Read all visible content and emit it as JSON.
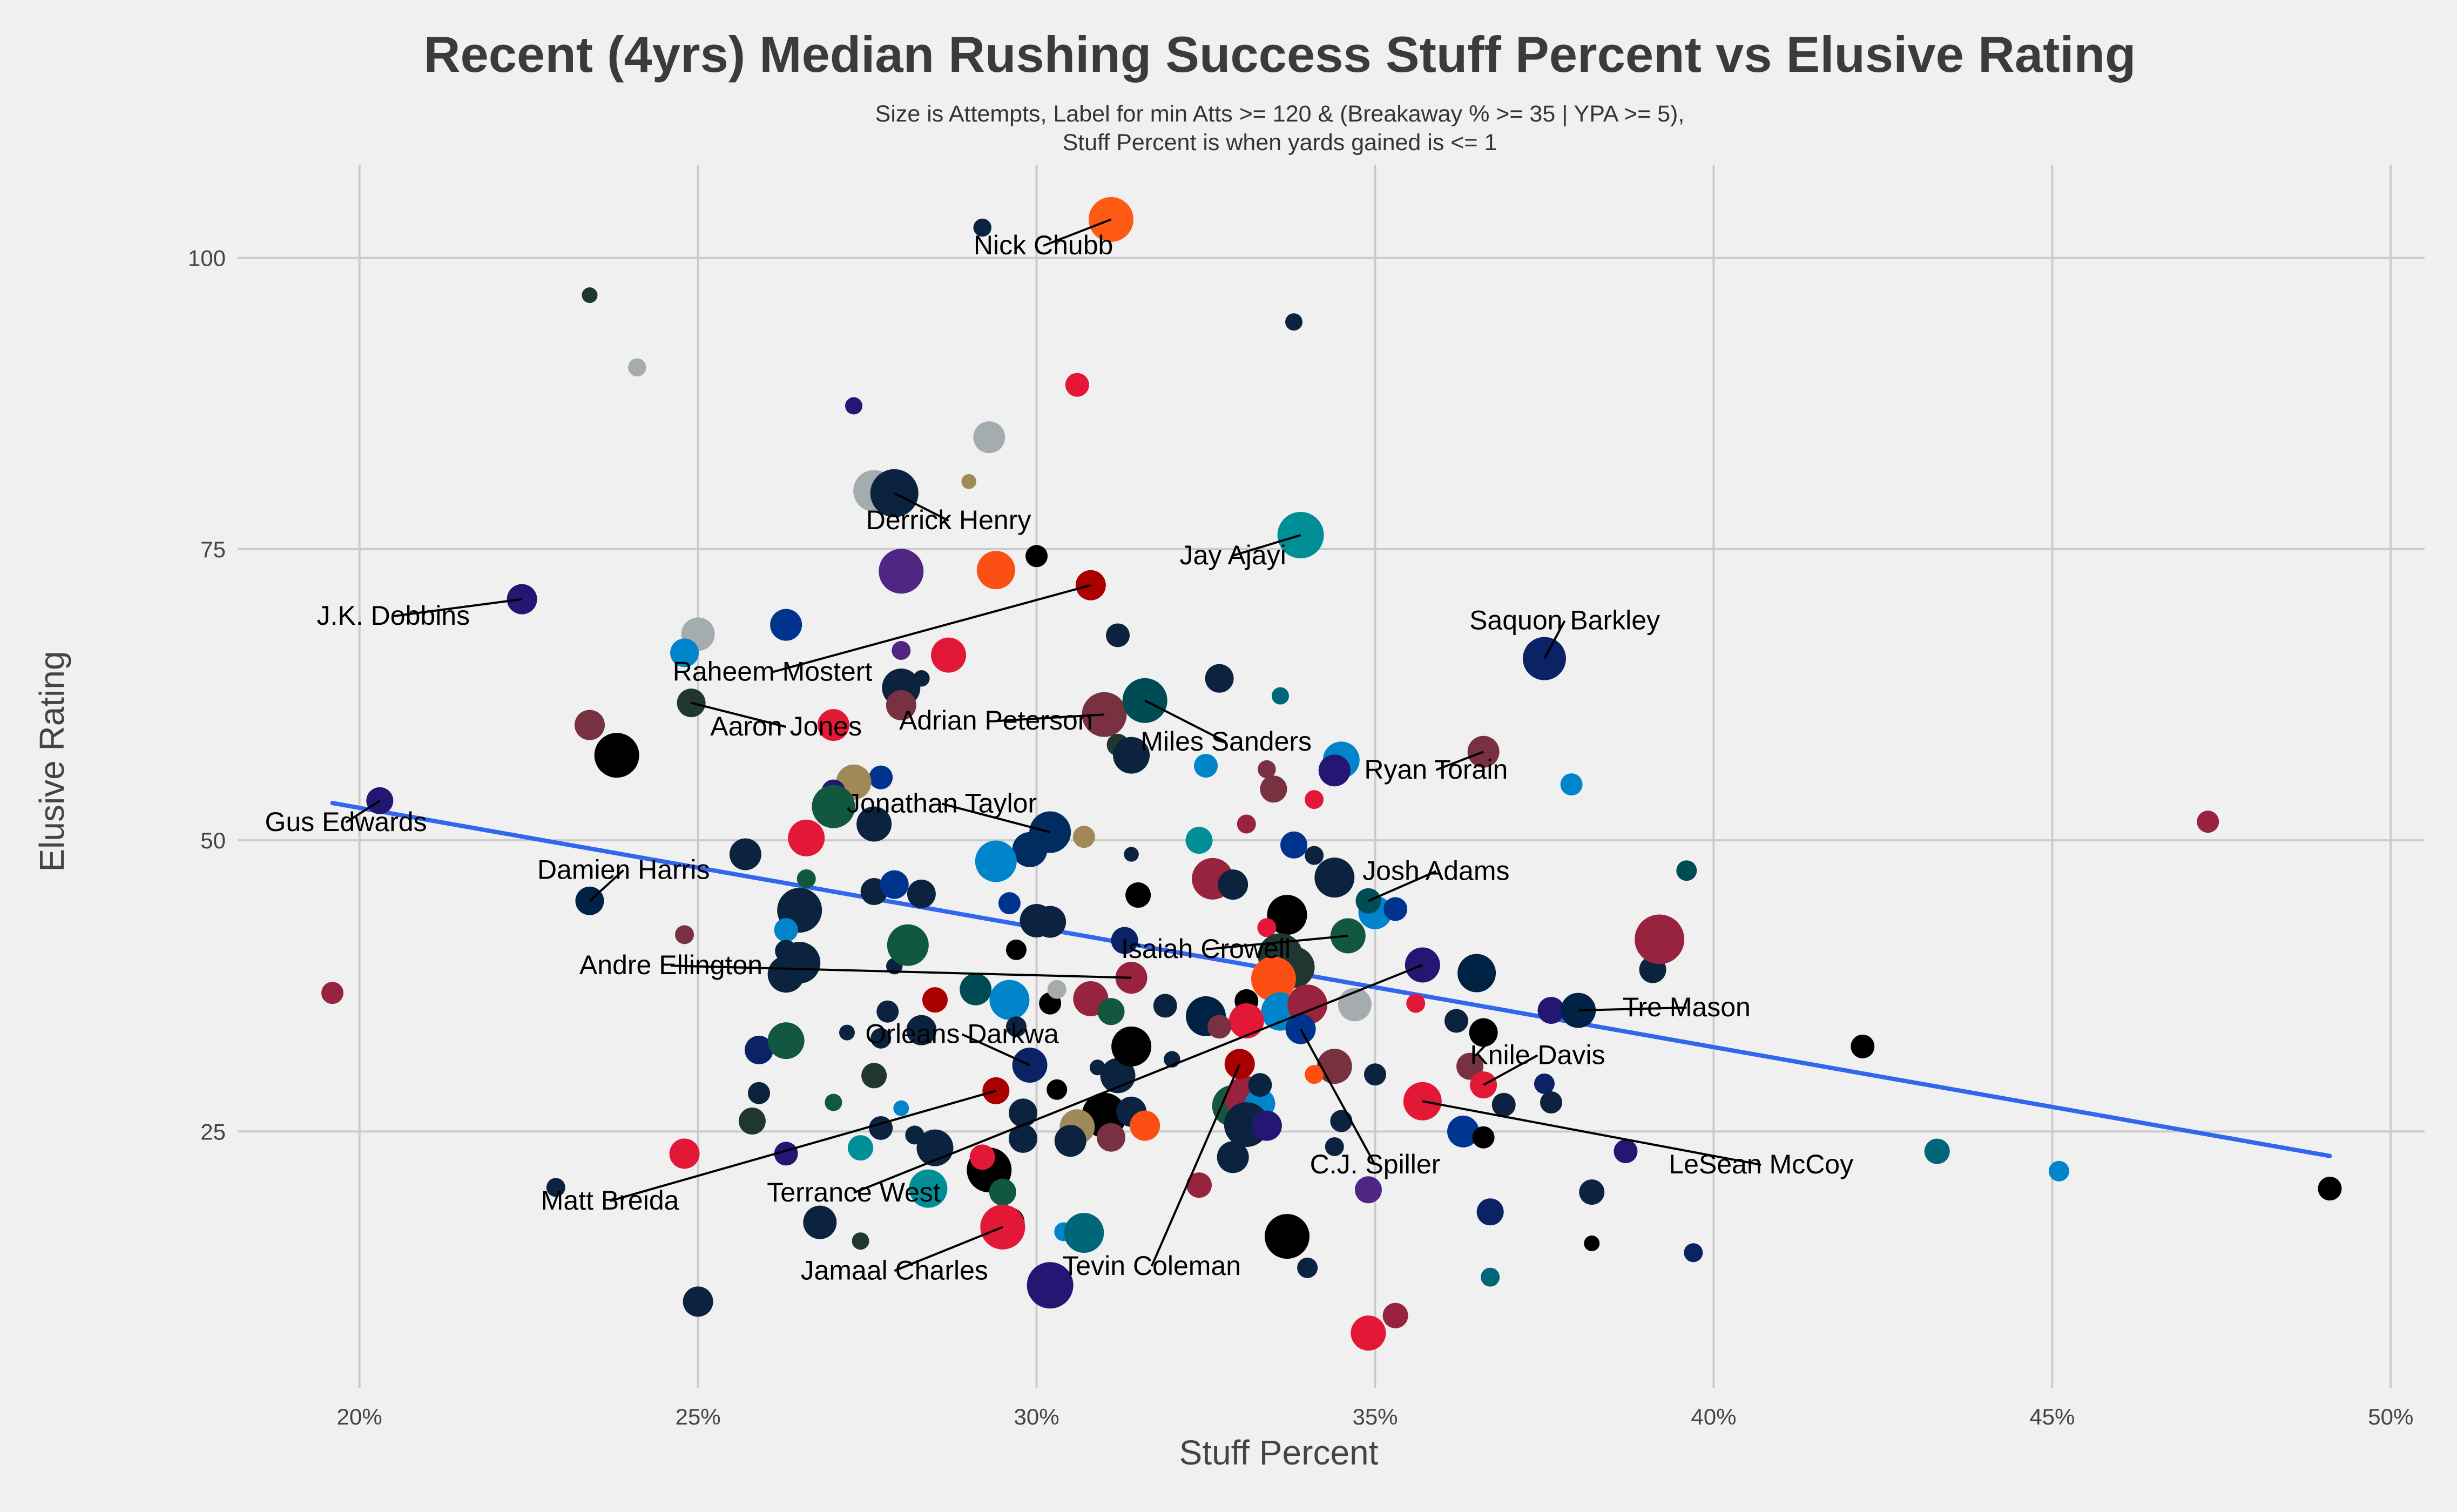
{
  "chart_data": {
    "type": "scatter",
    "title": "Recent (4yrs) Median Rushing Success Stuff Percent vs Elusive Rating",
    "subtitle_lines": [
      "Size is Attempts, Label for min Atts >= 120 & (Breakaway % >= 35 | YPA >= 5),",
      "Stuff Percent is when yards gained is <= 1"
    ],
    "xlabel": "Stuff Percent",
    "ylabel": "Elusive Rating",
    "xlim": [
      0.182,
      0.505
    ],
    "ylim": [
      3,
      108
    ],
    "x_ticks": [
      0.2,
      0.25,
      0.3,
      0.35,
      0.4,
      0.45,
      0.5
    ],
    "x_tick_labels": [
      "20%",
      "25%",
      "30%",
      "35%",
      "40%",
      "45%",
      "50%"
    ],
    "y_ticks": [
      25,
      50,
      75,
      100
    ],
    "y_tick_labels": [
      "25",
      "50",
      "75",
      "100"
    ],
    "grid": true,
    "trend_line": {
      "color": "#3366ee",
      "x": [
        0.196,
        0.491
      ],
      "y": [
        53.2,
        22.9
      ]
    },
    "labeled_points": [
      {
        "name": "Nick Chubb",
        "x": 0.311,
        "y": 103.3,
        "size": 420,
        "color": "#ff5a14",
        "label_x": 0.301,
        "label_y": 100.3
      },
      {
        "name": "Derrick Henry",
        "x": 0.279,
        "y": 79.8,
        "size": 460,
        "color": "#0c2340",
        "label_x": 0.287,
        "label_y": 76.7
      },
      {
        "name": "Jay Ajayi",
        "x": 0.339,
        "y": 76.2,
        "size": 440,
        "color": "#008e97",
        "label_x": 0.329,
        "label_y": 73.7
      },
      {
        "name": "J.K. Dobbins",
        "x": 0.224,
        "y": 70.7,
        "size": 240,
        "color": "#241773",
        "label_x": 0.205,
        "label_y": 68.5
      },
      {
        "name": "Raheem Mostert",
        "x": 0.308,
        "y": 71.9,
        "size": 240,
        "color": "#aa0000",
        "label_x": 0.261,
        "label_y": 63.7
      },
      {
        "name": "Saquon Barkley",
        "x": 0.375,
        "y": 65.6,
        "size": 400,
        "color": "#0b2265",
        "label_x": 0.378,
        "label_y": 68.1
      },
      {
        "name": "Adrian Peterson",
        "x": 0.31,
        "y": 60.8,
        "size": 420,
        "color": "#773141",
        "label_x": 0.294,
        "label_y": 59.5
      },
      {
        "name": "Aaron Jones",
        "x": 0.249,
        "y": 61.8,
        "size": 220,
        "color": "#203731",
        "label_x": 0.263,
        "label_y": 59.0
      },
      {
        "name": "Miles Sanders",
        "x": 0.316,
        "y": 62.0,
        "size": 420,
        "color": "#004c54",
        "label_x": 0.328,
        "label_y": 57.7
      },
      {
        "name": "Ryan Torain",
        "x": 0.366,
        "y": 57.6,
        "size": 260,
        "color": "#773141",
        "label_x": 0.359,
        "label_y": 55.3
      },
      {
        "name": "Gus Edwards",
        "x": 0.203,
        "y": 53.4,
        "size": 200,
        "color": "#241773",
        "label_x": 0.198,
        "label_y": 50.8
      },
      {
        "name": "Jonathan Taylor",
        "x": 0.302,
        "y": 50.7,
        "size": 380,
        "color": "#002c5f",
        "label_x": 0.286,
        "label_y": 52.4
      },
      {
        "name": "Josh Adams",
        "x": 0.349,
        "y": 44.8,
        "size": 180,
        "color": "#004c54",
        "label_x": 0.359,
        "label_y": 46.6
      },
      {
        "name": "Damien Harris",
        "x": 0.234,
        "y": 44.8,
        "size": 220,
        "color": "#002244",
        "label_x": 0.239,
        "label_y": 46.7
      },
      {
        "name": "Isaiah Crowell",
        "x": 0.346,
        "y": 41.8,
        "size": 300,
        "color": "#125740",
        "label_x": 0.325,
        "label_y": 39.9
      },
      {
        "name": "Andre Ellington",
        "x": 0.314,
        "y": 38.2,
        "size": 260,
        "color": "#97233f",
        "label_x": 0.246,
        "label_y": 38.5
      },
      {
        "name": "Tre Mason",
        "x": 0.38,
        "y": 35.4,
        "size": 300,
        "color": "#002244",
        "label_x": 0.396,
        "label_y": 34.9
      },
      {
        "name": "Orleans Darkwa",
        "x": 0.299,
        "y": 30.7,
        "size": 300,
        "color": "#0b2265",
        "label_x": 0.289,
        "label_y": 32.6
      },
      {
        "name": "Knile Davis",
        "x": 0.366,
        "y": 29.0,
        "size": 200,
        "color": "#e31837",
        "label_x": 0.374,
        "label_y": 30.8
      },
      {
        "name": "C.J. Spiller",
        "x": 0.339,
        "y": 33.8,
        "size": 240,
        "color": "#00338d",
        "label_x": 0.35,
        "label_y": 21.4
      },
      {
        "name": "LeSean McCoy",
        "x": 0.357,
        "y": 27.6,
        "size": 340,
        "color": "#e31837",
        "label_x": 0.407,
        "label_y": 21.4
      },
      {
        "name": "Matt Breida",
        "x": 0.294,
        "y": 28.5,
        "size": 200,
        "color": "#aa0000",
        "label_x": 0.237,
        "label_y": 18.3
      },
      {
        "name": "Terrance West",
        "x": 0.357,
        "y": 39.3,
        "size": 300,
        "color": "#241773",
        "label_x": 0.273,
        "label_y": 19.0
      },
      {
        "name": "Jamaal Charles",
        "x": 0.295,
        "y": 16.8,
        "size": 420,
        "color": "#e31837",
        "label_x": 0.279,
        "label_y": 12.3
      },
      {
        "name": "Tevin Coleman",
        "x": 0.33,
        "y": 30.8,
        "size": 240,
        "color": "#aa0000",
        "label_x": 0.317,
        "label_y": 12.7
      }
    ],
    "points": [
      [
        0.292,
        102.6,
        90,
        "#0c2340"
      ],
      [
        0.234,
        96.8,
        60,
        "#203731"
      ],
      [
        0.241,
        90.6,
        90,
        "#a5acaf"
      ],
      [
        0.338,
        94.5,
        80,
        "#0c2340"
      ],
      [
        0.306,
        89.1,
        160,
        "#e31837"
      ],
      [
        0.273,
        87.3,
        80,
        "#241773"
      ],
      [
        0.293,
        84.6,
        260,
        "#a5acaf"
      ],
      [
        0.29,
        80.8,
        50,
        "#9f8958"
      ],
      [
        0.276,
        80.0,
        380,
        "#a5acaf"
      ],
      [
        0.28,
        73.1,
        420,
        "#4f2683"
      ],
      [
        0.294,
        73.2,
        340,
        "#fb4f14"
      ],
      [
        0.3,
        74.4,
        140,
        "#000000"
      ],
      [
        0.25,
        67.7,
        280,
        "#a5acaf"
      ],
      [
        0.248,
        66.1,
        220,
        "#0085ca"
      ],
      [
        0.263,
        68.5,
        260,
        "#00338d"
      ],
      [
        0.312,
        67.6,
        160,
        "#0c2340"
      ],
      [
        0.287,
        65.9,
        300,
        "#e31837"
      ],
      [
        0.28,
        66.3,
        100,
        "#4f2683"
      ],
      [
        0.327,
        63.9,
        220,
        "#0c2340"
      ],
      [
        0.336,
        62.4,
        80,
        "#006778"
      ],
      [
        0.28,
        63.1,
        340,
        "#0c2340"
      ],
      [
        0.283,
        63.9,
        70,
        "#0c2340"
      ],
      [
        0.28,
        61.6,
        240,
        "#773141"
      ],
      [
        0.234,
        59.9,
        240,
        "#773141"
      ],
      [
        0.27,
        59.9,
        260,
        "#e31837"
      ],
      [
        0.238,
        57.3,
        420,
        "#000000"
      ],
      [
        0.312,
        58.2,
        140,
        "#203731"
      ],
      [
        0.314,
        57.3,
        320,
        "#0c2340"
      ],
      [
        0.325,
        56.4,
        160,
        "#0085ca"
      ],
      [
        0.334,
        56.1,
        90,
        "#773141"
      ],
      [
        0.335,
        54.4,
        200,
        "#773141"
      ],
      [
        0.341,
        53.5,
        100,
        "#e31837"
      ],
      [
        0.345,
        56.9,
        320,
        "#0085ca"
      ],
      [
        0.344,
        56.0,
        260,
        "#241773"
      ],
      [
        0.379,
        54.8,
        140,
        "#0085ca"
      ],
      [
        0.473,
        51.6,
        140,
        "#97233f"
      ],
      [
        0.277,
        55.4,
        160,
        "#00338d"
      ],
      [
        0.273,
        55.0,
        300,
        "#9f8958"
      ],
      [
        0.27,
        54.2,
        160,
        "#241773"
      ],
      [
        0.27,
        52.9,
        400,
        "#125740"
      ],
      [
        0.276,
        51.4,
        300,
        "#0c2340"
      ],
      [
        0.331,
        51.4,
        100,
        "#97233f"
      ],
      [
        0.266,
        50.2,
        320,
        "#e31837"
      ],
      [
        0.257,
        48.8,
        260,
        "#0c2340"
      ],
      [
        0.299,
        49.2,
        300,
        "#002c5f"
      ],
      [
        0.307,
        50.3,
        140,
        "#9f8958"
      ],
      [
        0.314,
        48.8,
        50,
        "#0c2340"
      ],
      [
        0.324,
        50.0,
        200,
        "#008e97"
      ],
      [
        0.338,
        49.6,
        200,
        "#00338d"
      ],
      [
        0.341,
        48.7,
        100,
        "#0c2340"
      ],
      [
        0.294,
        48.2,
        380,
        "#0085ca"
      ],
      [
        0.326,
        46.7,
        380,
        "#97233f"
      ],
      [
        0.329,
        46.2,
        240,
        "#0c2340"
      ],
      [
        0.344,
        46.8,
        360,
        "#0c2340"
      ],
      [
        0.266,
        46.7,
        100,
        "#125740"
      ],
      [
        0.276,
        45.6,
        200,
        "#0c2340"
      ],
      [
        0.279,
        46.2,
        220,
        "#00338d"
      ],
      [
        0.283,
        45.4,
        220,
        "#0c2340"
      ],
      [
        0.296,
        44.6,
        140,
        "#00338d"
      ],
      [
        0.315,
        45.3,
        180,
        "#000000"
      ],
      [
        0.265,
        44.0,
        420,
        "#0c2340"
      ],
      [
        0.35,
        43.8,
        280,
        "#0085ca"
      ],
      [
        0.353,
        44.1,
        160,
        "#00338d"
      ],
      [
        0.337,
        43.6,
        360,
        "#000000"
      ],
      [
        0.3,
        43.1,
        280,
        "#0c2340"
      ],
      [
        0.302,
        43.0,
        260,
        "#0c2340"
      ],
      [
        0.263,
        42.3,
        160,
        "#0085ca"
      ],
      [
        0.248,
        41.9,
        100,
        "#773141"
      ],
      [
        0.263,
        40.5,
        140,
        "#0c2340"
      ],
      [
        0.265,
        39.5,
        380,
        "#0c2340"
      ],
      [
        0.279,
        39.2,
        70,
        "#0c2340"
      ],
      [
        0.281,
        41.0,
        380,
        "#125740"
      ],
      [
        0.297,
        40.6,
        120,
        "#000000"
      ],
      [
        0.313,
        41.4,
        200,
        "#0b2265"
      ],
      [
        0.334,
        42.5,
        100,
        "#e31837"
      ],
      [
        0.336,
        40.1,
        420,
        "#203731"
      ],
      [
        0.338,
        39.1,
        380,
        "#203731"
      ],
      [
        0.357,
        39.6,
        180,
        "#aa0000"
      ],
      [
        0.365,
        38.6,
        340,
        "#002244"
      ],
      [
        0.391,
        38.9,
        200,
        "#0c2340"
      ],
      [
        0.396,
        47.4,
        120,
        "#004c54"
      ],
      [
        0.392,
        41.5,
        480,
        "#97233f"
      ],
      [
        0.263,
        38.5,
        320,
        "#0c2340"
      ],
      [
        0.278,
        35.3,
        140,
        "#0c2340"
      ],
      [
        0.285,
        36.3,
        180,
        "#aa0000"
      ],
      [
        0.291,
        37.2,
        260,
        "#004c54"
      ],
      [
        0.296,
        36.3,
        360,
        "#0085ca"
      ],
      [
        0.302,
        36.0,
        140,
        "#000000"
      ],
      [
        0.303,
        37.2,
        100,
        "#a5acaf"
      ],
      [
        0.308,
        36.4,
        300,
        "#97233f"
      ],
      [
        0.311,
        35.3,
        200,
        "#125740"
      ],
      [
        0.319,
        35.8,
        160,
        "#0c2340"
      ],
      [
        0.325,
        34.9,
        360,
        "#002244"
      ],
      [
        0.331,
        36.2,
        160,
        "#000000"
      ],
      [
        0.335,
        38.1,
        420,
        "#fb4f14"
      ],
      [
        0.336,
        35.3,
        340,
        "#0085ca"
      ],
      [
        0.34,
        35.9,
        360,
        "#97233f"
      ],
      [
        0.331,
        34.5,
        300,
        "#e31837"
      ],
      [
        0.327,
        34.0,
        160,
        "#773141"
      ],
      [
        0.347,
        35.9,
        280,
        "#a5acaf"
      ],
      [
        0.356,
        36.0,
        100,
        "#e31837"
      ],
      [
        0.362,
        34.5,
        160,
        "#0c2340"
      ],
      [
        0.366,
        33.5,
        220,
        "#000000"
      ],
      [
        0.376,
        35.4,
        200,
        "#241773"
      ],
      [
        0.259,
        32.0,
        220,
        "#0b2265"
      ],
      [
        0.263,
        32.8,
        320,
        "#125740"
      ],
      [
        0.272,
        33.5,
        60,
        "#0c2340"
      ],
      [
        0.277,
        33.0,
        120,
        "#0c2340"
      ],
      [
        0.283,
        33.7,
        240,
        "#0c2340"
      ],
      [
        0.297,
        34.0,
        120,
        "#0c2340"
      ],
      [
        0.309,
        30.5,
        60,
        "#0c2340"
      ],
      [
        0.312,
        29.8,
        300,
        "#0c2340"
      ],
      [
        0.314,
        32.3,
        360,
        "#000000"
      ],
      [
        0.32,
        31.2,
        70,
        "#0c2340"
      ],
      [
        0.344,
        30.6,
        300,
        "#773141"
      ],
      [
        0.341,
        29.9,
        100,
        "#fb4f14"
      ],
      [
        0.35,
        29.9,
        140,
        "#0c2340"
      ],
      [
        0.364,
        30.6,
        200,
        "#773141"
      ],
      [
        0.422,
        32.3,
        160,
        "#000000"
      ],
      [
        0.259,
        28.4,
        70,
        "#a5acaf"
      ],
      [
        0.259,
        28.3,
        140,
        "#0c2340"
      ],
      [
        0.27,
        27.5,
        80,
        "#125740"
      ],
      [
        0.276,
        29.8,
        180,
        "#203731"
      ],
      [
        0.28,
        27.0,
        60,
        "#0085ca"
      ],
      [
        0.298,
        26.6,
        220,
        "#0c2340"
      ],
      [
        0.303,
        28.6,
        120,
        "#000000"
      ],
      [
        0.31,
        26.4,
        420,
        "#000000"
      ],
      [
        0.306,
        25.4,
        300,
        "#9f8958"
      ],
      [
        0.314,
        26.7,
        240,
        "#0c2340"
      ],
      [
        0.316,
        25.5,
        240,
        "#fb4f14"
      ],
      [
        0.329,
        27.2,
        380,
        "#125740"
      ],
      [
        0.331,
        27.9,
        400,
        "#97233f"
      ],
      [
        0.333,
        27.4,
        240,
        "#0085ca"
      ],
      [
        0.333,
        29.0,
        160,
        "#0c2340"
      ],
      [
        0.331,
        25.6,
        420,
        "#0c2340"
      ],
      [
        0.334,
        25.5,
        240,
        "#241773"
      ],
      [
        0.345,
        25.9,
        140,
        "#0c2340"
      ],
      [
        0.363,
        25.0,
        260,
        "#003594"
      ],
      [
        0.369,
        27.3,
        160,
        "#0c2340"
      ],
      [
        0.375,
        29.1,
        120,
        "#0b2265"
      ],
      [
        0.376,
        27.5,
        140,
        "#0c2340"
      ],
      [
        0.258,
        25.9,
        200,
        "#203731"
      ],
      [
        0.263,
        23.1,
        160,
        "#241773"
      ],
      [
        0.248,
        23.1,
        240,
        "#e31837"
      ],
      [
        0.274,
        23.6,
        180,
        "#008e97"
      ],
      [
        0.277,
        25.3,
        160,
        "#0c2340"
      ],
      [
        0.282,
        24.7,
        100,
        "#0c2340"
      ],
      [
        0.285,
        23.6,
        320,
        "#0c2340"
      ],
      [
        0.293,
        21.7,
        420,
        "#000000"
      ],
      [
        0.292,
        22.8,
        180,
        "#e31837"
      ],
      [
        0.298,
        24.4,
        220,
        "#0c2340"
      ],
      [
        0.305,
        24.2,
        260,
        "#0c2340"
      ],
      [
        0.311,
        24.5,
        220,
        "#773141"
      ],
      [
        0.329,
        22.8,
        260,
        "#0c2340"
      ],
      [
        0.344,
        23.7,
        100,
        "#0c2340"
      ],
      [
        0.366,
        24.5,
        140,
        "#000000"
      ],
      [
        0.387,
        23.3,
        160,
        "#241773"
      ],
      [
        0.433,
        23.3,
        180,
        "#006778"
      ],
      [
        0.451,
        21.6,
        120,
        "#0085ca"
      ],
      [
        0.229,
        20.2,
        100,
        "#0c2340"
      ],
      [
        0.284,
        20.1,
        340,
        "#008e97"
      ],
      [
        0.295,
        19.8,
        200,
        "#125740"
      ],
      [
        0.324,
        20.4,
        180,
        "#97233f"
      ],
      [
        0.349,
        20.0,
        200,
        "#4f2683"
      ],
      [
        0.382,
        19.8,
        180,
        "#0c2340"
      ],
      [
        0.491,
        20.1,
        160,
        "#000000"
      ],
      [
        0.268,
        17.2,
        280,
        "#0c2340"
      ],
      [
        0.296,
        17.2,
        240,
        "#000000"
      ],
      [
        0.304,
        16.4,
        100,
        "#0085ca"
      ],
      [
        0.307,
        16.3,
        360,
        "#006778"
      ],
      [
        0.274,
        15.6,
        80,
        "#203731"
      ],
      [
        0.337,
        16.0,
        420,
        "#000000"
      ],
      [
        0.367,
        18.1,
        200,
        "#0b2265"
      ],
      [
        0.382,
        15.4,
        60,
        "#000000"
      ],
      [
        0.397,
        14.6,
        100,
        "#0b2265"
      ],
      [
        0.34,
        13.3,
        120,
        "#0c2340"
      ],
      [
        0.367,
        12.5,
        100,
        "#006778"
      ],
      [
        0.25,
        10.4,
        240,
        "#0c2340"
      ],
      [
        0.302,
        11.8,
        440,
        "#241773"
      ],
      [
        0.353,
        9.2,
        180,
        "#97233f"
      ],
      [
        0.349,
        7.7,
        300,
        "#e31837"
      ],
      [
        0.196,
        36.9,
        140,
        "#97233f"
      ]
    ]
  }
}
